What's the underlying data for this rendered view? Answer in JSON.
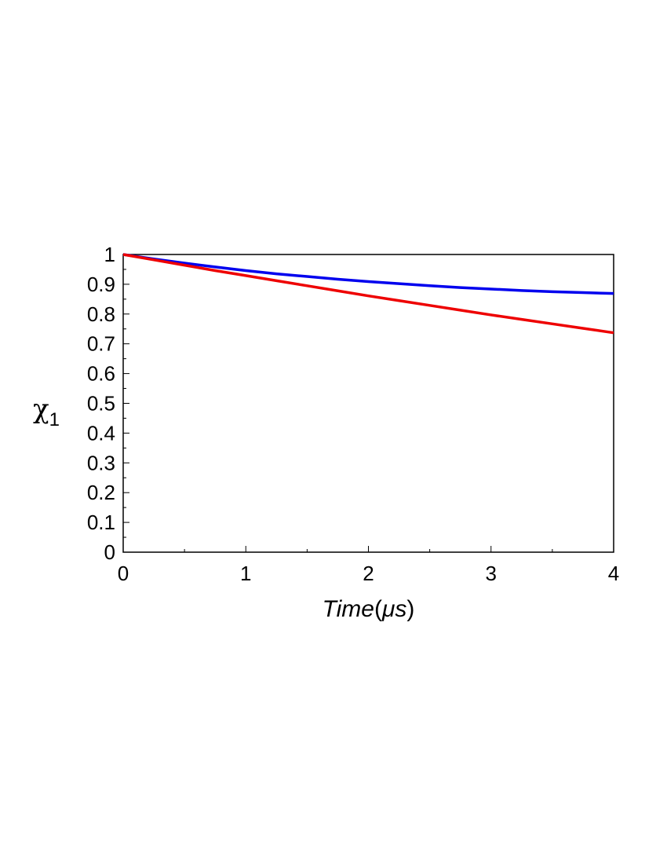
{
  "chart_data": {
    "type": "line",
    "title": "",
    "xlabel_main": "Time",
    "xlabel_unit": "μs",
    "ylabel_symbol": "χ",
    "ylabel_subscript": "1",
    "xlim": [
      0,
      4
    ],
    "ylim": [
      0,
      1
    ],
    "x_ticks": [
      0,
      1,
      2,
      3,
      4
    ],
    "x_tick_labels": [
      "0",
      "1",
      "2",
      "3",
      "4"
    ],
    "y_ticks": [
      0,
      0.1,
      0.2,
      0.3,
      0.4,
      0.5,
      0.6,
      0.7,
      0.8,
      0.9,
      1
    ],
    "y_tick_labels": [
      "0",
      "0.1",
      "0.2",
      "0.3",
      "0.4",
      "0.5",
      "0.6",
      "0.7",
      "0.8",
      "0.9",
      "1"
    ],
    "grid": false,
    "series": [
      {
        "color": "#0000ee",
        "x": [
          0,
          0.25,
          0.5,
          0.75,
          1.0,
          1.25,
          1.5,
          1.75,
          2.0,
          2.25,
          2.5,
          2.75,
          3.0,
          3.25,
          3.5,
          3.75,
          4.0
        ],
        "y": [
          1.0,
          0.985,
          0.971,
          0.958,
          0.946,
          0.935,
          0.926,
          0.917,
          0.909,
          0.902,
          0.895,
          0.889,
          0.884,
          0.879,
          0.875,
          0.872,
          0.869
        ]
      },
      {
        "color": "#ee0000",
        "x": [
          0,
          0.25,
          0.5,
          0.75,
          1.0,
          1.25,
          1.5,
          1.75,
          2.0,
          2.25,
          2.5,
          2.75,
          3.0,
          3.25,
          3.5,
          3.75,
          4.0
        ],
        "y": [
          1.0,
          0.982,
          0.964,
          0.946,
          0.929,
          0.912,
          0.895,
          0.878,
          0.861,
          0.845,
          0.829,
          0.813,
          0.797,
          0.782,
          0.767,
          0.752,
          0.737
        ]
      }
    ]
  }
}
